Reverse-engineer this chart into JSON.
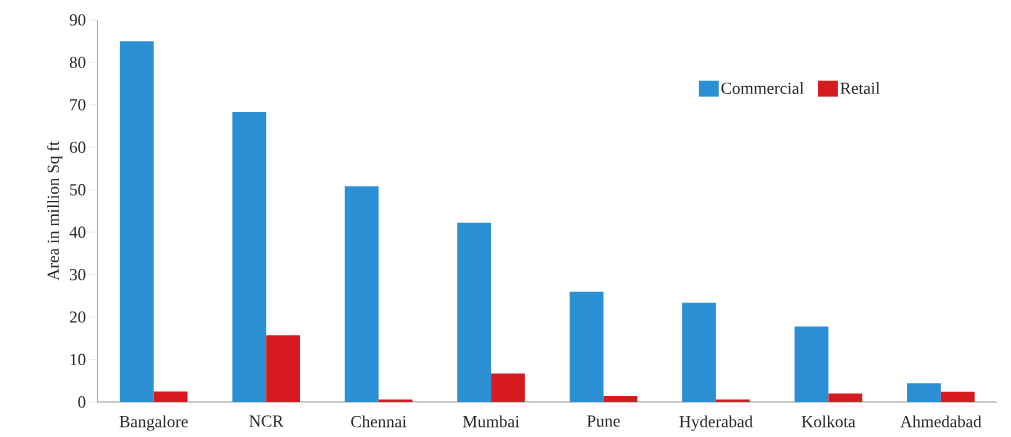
{
  "chart_data": {
    "type": "bar",
    "ylabel": "Area in million Sq ft",
    "categories": [
      "Bangalore",
      "NCR",
      "Chennai",
      "Mumbai",
      "Pune",
      "Hyderabad",
      "Kolkota",
      "Ahmedabad"
    ],
    "series": [
      {
        "name": "Commercial",
        "color": "#2b90d3",
        "values": [
          85,
          68.3,
          50.8,
          42.2,
          26,
          23.4,
          17.8,
          4.4
        ]
      },
      {
        "name": "Retail",
        "color": "#d71920",
        "values": [
          2.5,
          15.7,
          0.6,
          6.7,
          1.4,
          0.6,
          2.0,
          2.4
        ]
      }
    ],
    "ylim": [
      0,
      90
    ],
    "yticks": [
      0,
      10,
      20,
      30,
      40,
      50,
      60,
      70,
      80,
      90
    ],
    "grid": false,
    "legend": "top right"
  }
}
